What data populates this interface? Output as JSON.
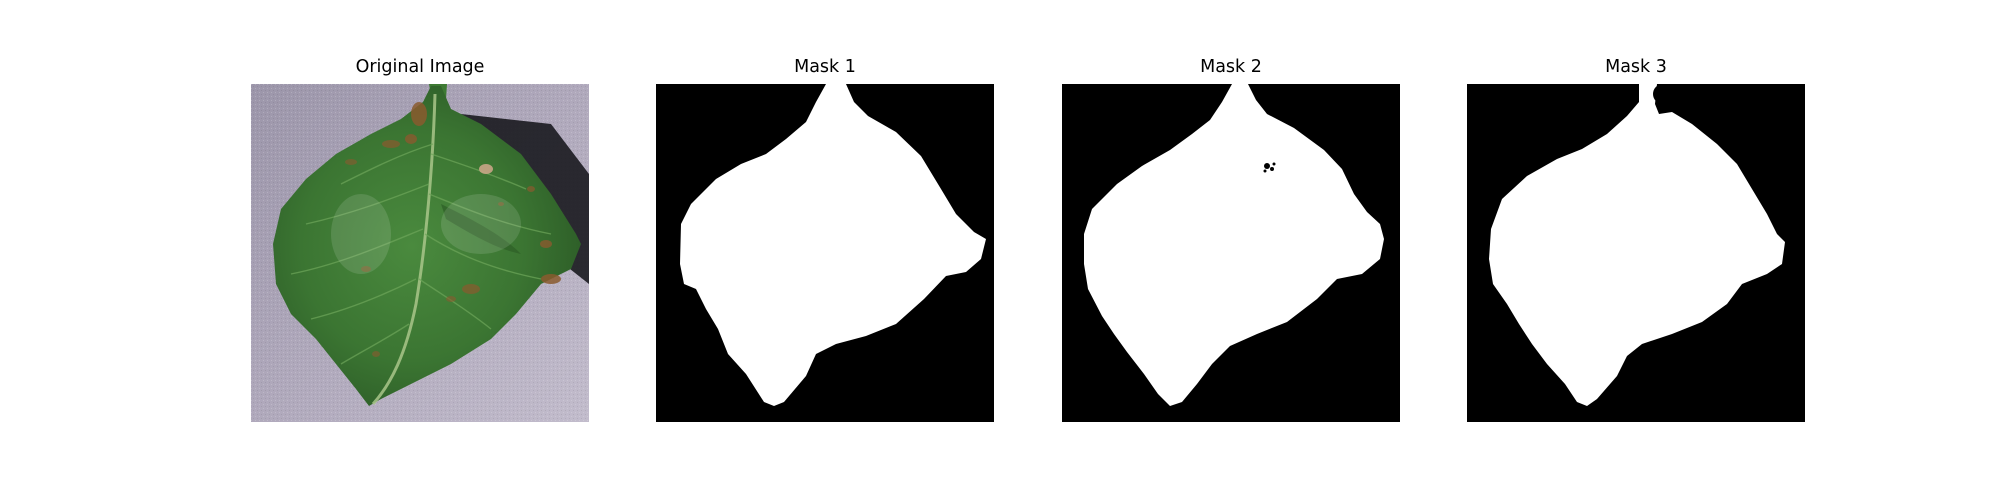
{
  "panels": [
    {
      "title": "Original Image"
    },
    {
      "title": "Mask 1"
    },
    {
      "title": "Mask 2"
    },
    {
      "title": "Mask 3"
    }
  ],
  "colors": {
    "mask_background": "#000000",
    "mask_foreground": "#ffffff",
    "leaf_green": "#3d7a35",
    "leaf_dark": "#2a5a26",
    "backdrop_lavender": "#a9a2b5",
    "lesion_brown": "#8a5a2e"
  }
}
